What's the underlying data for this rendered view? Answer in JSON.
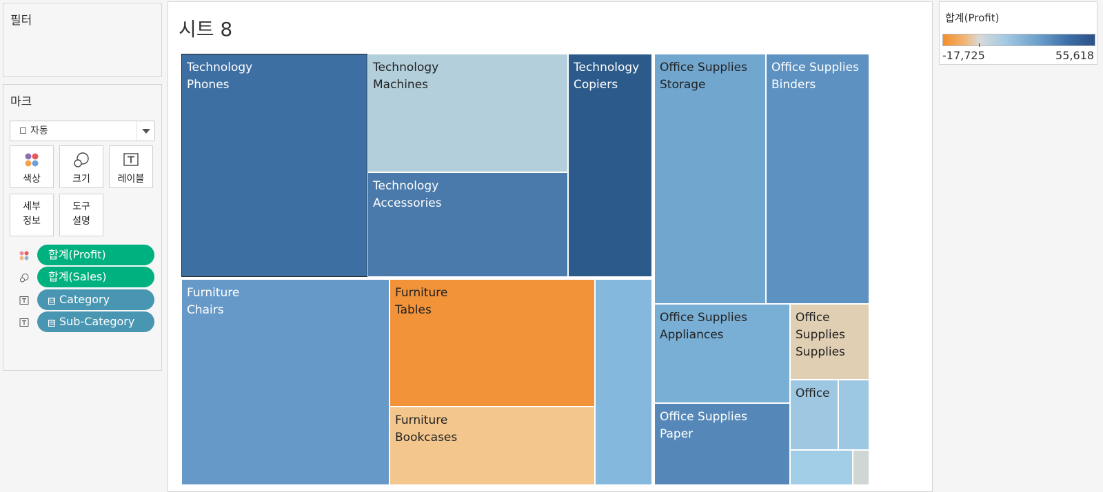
{
  "filters": {
    "title": "필터"
  },
  "marks": {
    "title": "마크",
    "mark_type": "자동",
    "buttons": {
      "color": "색상",
      "size": "크기",
      "label": "레이블",
      "detail_line1": "세부",
      "detail_line2": "정보",
      "tooltip_line1": "도구",
      "tooltip_line2": "설명"
    },
    "pills": [
      {
        "text": "합계(Profit)"
      },
      {
        "text": "합계(Sales)"
      },
      {
        "text": "Category",
        "prefix": "⊟"
      },
      {
        "text": "Sub-Category",
        "prefix": "⊞"
      }
    ]
  },
  "sheet": {
    "title": "시트 8"
  },
  "treemap": {
    "cells": [
      {
        "line1": "Technology",
        "line2": "Phones",
        "color": "#3e6fa2"
      },
      {
        "line1": "Technology",
        "line2": "Machines",
        "color": "#b2cfdb"
      },
      {
        "line1": "Technology",
        "line2": "Copiers",
        "color": "#2c5a8a"
      },
      {
        "line1": "Technology",
        "line2": "Accessories",
        "color": "#4a7aab"
      },
      {
        "line1": "Office Supplies",
        "line2": "Storage",
        "color": "#71a6cf"
      },
      {
        "line1": "Office Supplies",
        "line2": "Binders",
        "color": "#5d91c1"
      },
      {
        "line1": "Furniture",
        "line2": "Chairs",
        "color": "#6699c7"
      },
      {
        "line1": "Furniture",
        "line2": "Tables",
        "color": "#f39339"
      },
      {
        "line1": "Furniture",
        "line2": "Bookcases",
        "color": "#f3c68d"
      },
      {
        "line1": "",
        "line2": "",
        "color": "#84b9dd"
      },
      {
        "line1": "Office Supplies",
        "line2": "Appliances",
        "color": "#79aed5"
      },
      {
        "line1": "Office",
        "line2": "Supplies",
        "line3": "Supplies",
        "color": "#e0cfb3"
      },
      {
        "line1": "Office Supplies",
        "line2": "Paper",
        "color": "#5588b8"
      },
      {
        "line1": "Office",
        "line2": "",
        "color": "#9ec8e2"
      },
      {
        "line1": "",
        "line2": "",
        "color": "#9cc8e4"
      },
      {
        "line1": "",
        "line2": "",
        "color": "#a2cde6"
      },
      {
        "line1": "",
        "line2": "",
        "color": "#cfd6d3"
      }
    ]
  },
  "legend": {
    "title": "합계(Profit)",
    "min": "-17,725",
    "max": "55,618",
    "color_low": "#f28e2b",
    "color_high": "#2a5286"
  }
}
